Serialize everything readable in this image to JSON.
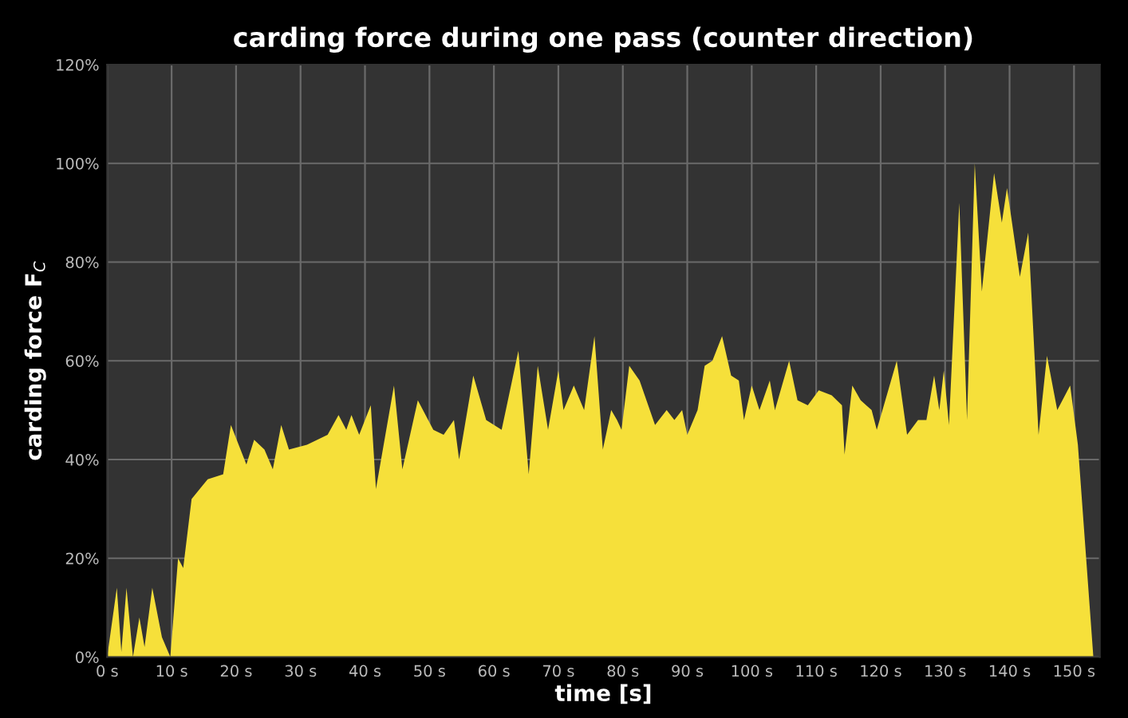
{
  "chart_data": {
    "type": "area",
    "title": "carding force during one pass (counter direction)",
    "xlabel": "time [s]",
    "ylabel": "carding force F$_{C}$",
    "xlim": [
      0,
      154
    ],
    "ylim": [
      0,
      120
    ],
    "xticks": [
      {
        "value": 0,
        "label": "0 s"
      },
      {
        "value": 10,
        "label": "10 s"
      },
      {
        "value": 20,
        "label": "20 s"
      },
      {
        "value": 30,
        "label": "30 s"
      },
      {
        "value": 40,
        "label": "40 s"
      },
      {
        "value": 50,
        "label": "50 s"
      },
      {
        "value": 60,
        "label": "60 s"
      },
      {
        "value": 70,
        "label": "70 s"
      },
      {
        "value": 80,
        "label": "80 s"
      },
      {
        "value": 90,
        "label": "90 s"
      },
      {
        "value": 100,
        "label": "100 s"
      },
      {
        "value": 110,
        "label": "110 s"
      },
      {
        "value": 120,
        "label": "120 s"
      },
      {
        "value": 130,
        "label": "130 s"
      },
      {
        "value": 140,
        "label": "140 s"
      },
      {
        "value": 150,
        "label": "150 s"
      }
    ],
    "yticks": [
      {
        "value": 0,
        "label": "0%"
      },
      {
        "value": 20,
        "label": "20%"
      },
      {
        "value": 40,
        "label": "40%"
      },
      {
        "value": 60,
        "label": "60%"
      },
      {
        "value": 80,
        "label": "80%"
      },
      {
        "value": 100,
        "label": "100%"
      },
      {
        "value": 120,
        "label": "120%"
      }
    ],
    "grid": true,
    "series": [
      {
        "color": "#f6e03a",
        "x": [
          0,
          1.5,
          2.2,
          3,
          4,
          5,
          5.8,
          7,
          8.5,
          9.8,
          11,
          11.8,
          13.1,
          15.6,
          18,
          19.2,
          21.6,
          22.8,
          24.4,
          25.7,
          27,
          28.2,
          31,
          34.2,
          35.9,
          37.1,
          37.9,
          39.1,
          40.9,
          41.7,
          44.5,
          45.8,
          48.2,
          50.6,
          52.2,
          53.8,
          54.6,
          56.8,
          58.8,
          61.2,
          63.8,
          65.4,
          66.8,
          68.4,
          70,
          70.8,
          72.4,
          74,
          75.6,
          76.9,
          78.2,
          79.1,
          79.8,
          81,
          82.6,
          85,
          86.8,
          88,
          89.2,
          90,
          91.6,
          92.7,
          93.9,
          95.4,
          96.8,
          98,
          98.8,
          100,
          101.2,
          102.8,
          103.6,
          105.8,
          107.1,
          108.7,
          110.4,
          112.4,
          114,
          114.4,
          115.6,
          116.9,
          118.6,
          119.4,
          122.5,
          124.1,
          125.8,
          127.1,
          128.3,
          129.1,
          129.8,
          130.6,
          132.2,
          133.4,
          134.6,
          135.7,
          137.6,
          138.8,
          139.6,
          141.6,
          142.9,
          144.5,
          145.8,
          147.4,
          149.4,
          150.6,
          153
        ],
        "values": [
          0,
          14,
          1,
          14,
          0,
          8,
          2,
          14,
          4,
          0,
          20,
          18,
          32,
          36,
          37,
          47,
          39,
          44,
          42,
          38,
          47,
          42,
          43,
          45,
          49,
          46,
          49,
          45,
          51,
          34,
          55,
          38,
          52,
          46,
          45,
          48,
          40,
          57,
          48,
          46,
          62,
          37,
          59,
          46,
          58,
          50,
          55,
          50,
          65,
          42,
          50,
          48,
          46,
          59,
          56,
          47,
          50,
          48,
          50,
          45,
          50,
          59,
          60,
          65,
          57,
          56,
          48,
          55,
          50,
          56,
          50,
          60,
          52,
          51,
          54,
          53,
          51,
          41,
          55,
          52,
          50,
          46,
          60,
          45,
          48,
          48,
          57,
          50,
          58,
          47,
          92,
          48,
          100,
          74,
          98,
          88,
          95,
          77,
          86,
          45,
          61,
          50,
          55,
          43,
          0
        ]
      }
    ]
  }
}
